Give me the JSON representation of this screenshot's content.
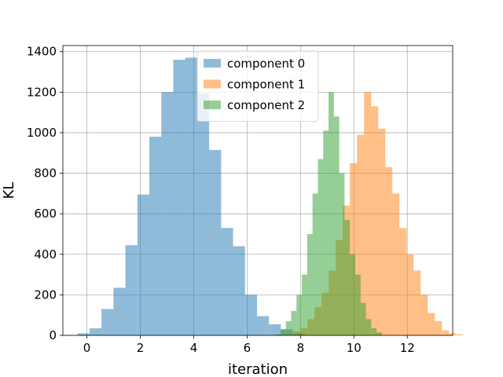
{
  "chart_data": {
    "type": "histogram",
    "title": "",
    "xlabel": "iteration",
    "ylabel": "KL",
    "xlim": [
      -0.9,
      13.7
    ],
    "ylim": [
      0,
      1430
    ],
    "xticks": [
      "0",
      "2",
      "4",
      "6",
      "8",
      "10",
      "12"
    ],
    "yticks": [
      "0",
      "200",
      "400",
      "600",
      "800",
      "1000",
      "1200",
      "1400"
    ],
    "grid": true,
    "legend_position": "upper-center",
    "alpha": 0.5,
    "series": [
      {
        "name": "component 0",
        "color": "#1f77b4",
        "bin_start": -0.35,
        "bin_width": 0.448,
        "counts": [
          10,
          35,
          130,
          235,
          445,
          695,
          980,
          1200,
          1360,
          1370,
          1195,
          915,
          530,
          440,
          200,
          95,
          55,
          30,
          10
        ]
      },
      {
        "name": "component 1",
        "color": "#ff7f0e",
        "bin_start": 7.2,
        "bin_width": 0.265,
        "counts": [
          5,
          12,
          20,
          35,
          80,
          140,
          210,
          320,
          470,
          640,
          850,
          990,
          1200,
          1130,
          1020,
          830,
          700,
          530,
          400,
          320,
          200,
          110,
          70,
          25,
          10,
          5
        ]
      },
      {
        "name": "component 2",
        "color": "#2ca02c",
        "bin_start": 7.05,
        "bin_width": 0.2,
        "counts": [
          5,
          30,
          70,
          120,
          200,
          300,
          500,
          700,
          870,
          1010,
          1200,
          1080,
          800,
          570,
          400,
          300,
          160,
          80,
          35,
          15
        ]
      }
    ]
  }
}
